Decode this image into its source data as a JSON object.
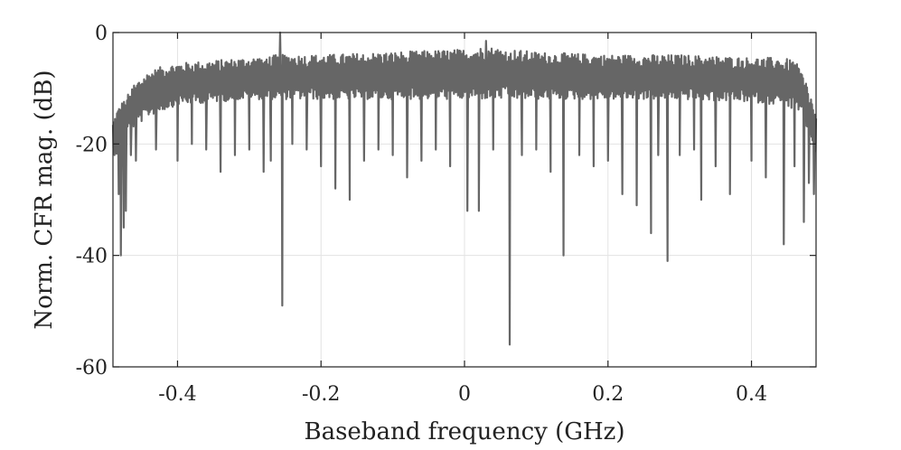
{
  "chart_data": {
    "type": "line",
    "title": "",
    "xlabel": "Baseband frequency (GHz)",
    "ylabel": "Norm. CFR mag. (dB)",
    "xlim": [
      -0.49,
      0.49
    ],
    "ylim": [
      -60,
      0
    ],
    "xticks": [
      -0.4,
      -0.2,
      0,
      0.2,
      0.4
    ],
    "xtick_labels": [
      "-0.4",
      "-0.2",
      "0",
      "0.2",
      "0.4"
    ],
    "yticks": [
      -60,
      -40,
      -20,
      0
    ],
    "ytick_labels": [
      "-60",
      "-40",
      "-20",
      "0"
    ],
    "grid": true,
    "line_color": "#666666",
    "series": [
      {
        "name": "",
        "envelope": {
          "x": [
            -0.49,
            -0.485,
            -0.48,
            -0.47,
            -0.46,
            -0.44,
            -0.42,
            -0.4,
            -0.35,
            -0.3,
            -0.26,
            -0.2,
            -0.1,
            0.0,
            0.03,
            0.1,
            0.2,
            0.3,
            0.4,
            0.44,
            0.46,
            0.47,
            0.48,
            0.49
          ],
          "upper": [
            -16,
            -14,
            -13,
            -11,
            -9,
            -7,
            -6,
            -5.5,
            -5,
            -4.5,
            -4,
            -4,
            -3.5,
            -3,
            -2.5,
            -3.5,
            -4,
            -4,
            -4.5,
            -4.5,
            -5,
            -7,
            -10,
            -15
          ],
          "lower": [
            -22,
            -22,
            -20,
            -18,
            -17,
            -15,
            -14,
            -13,
            -12.5,
            -12,
            -12,
            -12,
            -12,
            -12,
            -12,
            -12,
            -12,
            -12,
            -12.5,
            -13,
            -14,
            -15,
            -18,
            -22
          ]
        },
        "dips": [
          {
            "x": -0.482,
            "y": -29
          },
          {
            "x": -0.479,
            "y": -40
          },
          {
            "x": -0.475,
            "y": -35
          },
          {
            "x": -0.472,
            "y": -32
          },
          {
            "x": -0.465,
            "y": -22
          },
          {
            "x": -0.458,
            "y": -23
          },
          {
            "x": -0.43,
            "y": -21
          },
          {
            "x": -0.4,
            "y": -23
          },
          {
            "x": -0.38,
            "y": -20
          },
          {
            "x": -0.36,
            "y": -21
          },
          {
            "x": -0.34,
            "y": -25
          },
          {
            "x": -0.32,
            "y": -22
          },
          {
            "x": -0.3,
            "y": -21
          },
          {
            "x": -0.28,
            "y": -25
          },
          {
            "x": -0.27,
            "y": -23
          },
          {
            "x": -0.254,
            "y": -49
          },
          {
            "x": -0.24,
            "y": -20
          },
          {
            "x": -0.22,
            "y": -21
          },
          {
            "x": -0.2,
            "y": -24
          },
          {
            "x": -0.18,
            "y": -28
          },
          {
            "x": -0.16,
            "y": -30
          },
          {
            "x": -0.14,
            "y": -23
          },
          {
            "x": -0.12,
            "y": -21
          },
          {
            "x": -0.1,
            "y": -22
          },
          {
            "x": -0.08,
            "y": -26
          },
          {
            "x": -0.06,
            "y": -23
          },
          {
            "x": -0.04,
            "y": -21
          },
          {
            "x": -0.02,
            "y": -24
          },
          {
            "x": 0.004,
            "y": -32
          },
          {
            "x": 0.02,
            "y": -32
          },
          {
            "x": 0.04,
            "y": -21
          },
          {
            "x": 0.063,
            "y": -56
          },
          {
            "x": 0.08,
            "y": -22
          },
          {
            "x": 0.1,
            "y": -21
          },
          {
            "x": 0.12,
            "y": -25
          },
          {
            "x": 0.138,
            "y": -40
          },
          {
            "x": 0.16,
            "y": -22
          },
          {
            "x": 0.18,
            "y": -24
          },
          {
            "x": 0.2,
            "y": -23
          },
          {
            "x": 0.22,
            "y": -29
          },
          {
            "x": 0.24,
            "y": -31
          },
          {
            "x": 0.26,
            "y": -36
          },
          {
            "x": 0.27,
            "y": -22
          },
          {
            "x": 0.283,
            "y": -41
          },
          {
            "x": 0.3,
            "y": -22
          },
          {
            "x": 0.32,
            "y": -21
          },
          {
            "x": 0.33,
            "y": -30
          },
          {
            "x": 0.35,
            "y": -24
          },
          {
            "x": 0.37,
            "y": -29
          },
          {
            "x": 0.4,
            "y": -23
          },
          {
            "x": 0.42,
            "y": -26
          },
          {
            "x": 0.445,
            "y": -38
          },
          {
            "x": 0.46,
            "y": -24
          },
          {
            "x": 0.473,
            "y": -34
          },
          {
            "x": 0.48,
            "y": -27
          },
          {
            "x": 0.487,
            "y": -29
          }
        ],
        "peaks": [
          {
            "x": -0.257,
            "y": 0
          },
          {
            "x": 0.03,
            "y": -1.5
          }
        ]
      }
    ]
  }
}
